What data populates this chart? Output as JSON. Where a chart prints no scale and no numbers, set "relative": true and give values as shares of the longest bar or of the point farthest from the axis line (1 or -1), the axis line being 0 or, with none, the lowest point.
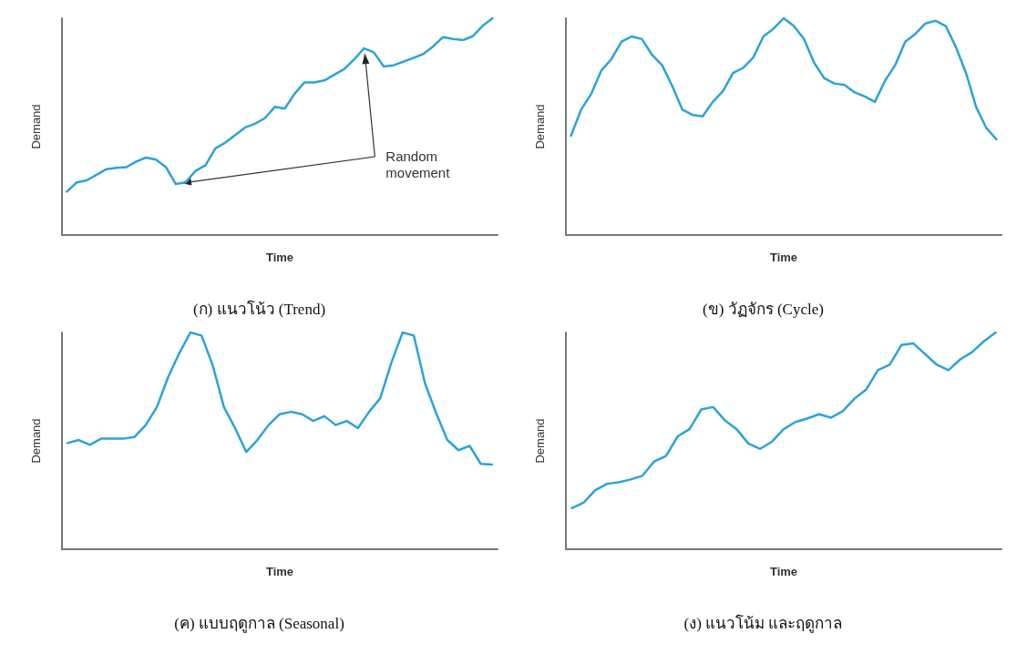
{
  "chart_data": [
    {
      "type": "line",
      "title": "(ก) แนวโน้ว (Trend)",
      "xlabel": "Time",
      "ylabel": "Demand",
      "relative": true,
      "grid": false,
      "marker": "none",
      "line_style": "solid",
      "annotations": [
        "Random movement"
      ],
      "categories": [
        null,
        null,
        null,
        null,
        null,
        null,
        null,
        null,
        null,
        null,
        null,
        null,
        null,
        null,
        null,
        null,
        null,
        null,
        null,
        null,
        null,
        null,
        null,
        null,
        null,
        null,
        null,
        null,
        null,
        null,
        null,
        null,
        null,
        null,
        null,
        null,
        null,
        null,
        null,
        null,
        null,
        null,
        null,
        null
      ],
      "series": [
        {
          "color": "#2aa3dc",
          "values": [
            0.2,
            0.243,
            0.252,
            0.278,
            0.304,
            0.31,
            0.313,
            0.339,
            0.357,
            0.348,
            0.313,
            0.235,
            0.243,
            0.296,
            0.322,
            0.4,
            0.426,
            0.461,
            0.496,
            0.513,
            0.539,
            0.591,
            0.583,
            0.652,
            0.704,
            0.704,
            0.713,
            0.739,
            0.765,
            0.809,
            0.861,
            0.843,
            0.777,
            0.783,
            0.8,
            0.817,
            0.835,
            0.87,
            0.913,
            0.904,
            0.899,
            0.917,
            0.965,
            1
          ]
        }
      ]
    },
    {
      "type": "line",
      "title": "(ข) วัฏจักร (Cycle)",
      "xlabel": "Time",
      "ylabel": "Demand",
      "relative": true,
      "grid": false,
      "marker": "none",
      "line_style": "solid",
      "categories": [
        null,
        null,
        null,
        null,
        null,
        null,
        null,
        null,
        null,
        null,
        null,
        null,
        null,
        null,
        null,
        null,
        null,
        null,
        null,
        null,
        null,
        null,
        null,
        null,
        null,
        null,
        null,
        null,
        null,
        null,
        null,
        null,
        null,
        null,
        null,
        null,
        null,
        null,
        null,
        null,
        null,
        null,
        null
      ],
      "series": [
        {
          "color": "#2aa3dc",
          "values": [
            0.458,
            0.578,
            0.651,
            0.759,
            0.812,
            0.892,
            0.916,
            0.904,
            0.831,
            0.783,
            0.687,
            0.578,
            0.554,
            0.547,
            0.614,
            0.663,
            0.747,
            0.771,
            0.819,
            0.916,
            0.952,
            1,
            0.964,
            0.904,
            0.795,
            0.723,
            0.699,
            0.692,
            0.658,
            0.639,
            0.614,
            0.711,
            0.783,
            0.892,
            0.928,
            0.976,
            0.988,
            0.964,
            0.867,
            0.747,
            0.59,
            0.494,
            0.441
          ]
        }
      ]
    },
    {
      "type": "line",
      "title": "(ค) แบบฤดูกาล (Seasonal)",
      "xlabel": "Time",
      "ylabel": "Demand",
      "relative": true,
      "grid": false,
      "marker": "none",
      "line_style": "solid",
      "categories": [
        null,
        null,
        null,
        null,
        null,
        null,
        null,
        null,
        null,
        null,
        null,
        null,
        null,
        null,
        null,
        null,
        null,
        null,
        null,
        null,
        null,
        null,
        null,
        null,
        null,
        null,
        null,
        null,
        null,
        null,
        null,
        null,
        null,
        null,
        null,
        null,
        null,
        null,
        null
      ],
      "series": [
        {
          "color": "#2aa3dc",
          "values": [
            0.49,
            0.504,
            0.482,
            0.51,
            0.51,
            0.51,
            0.518,
            0.573,
            0.656,
            0.793,
            0.904,
            1,
            0.986,
            0.848,
            0.656,
            0.559,
            0.449,
            0.504,
            0.573,
            0.623,
            0.634,
            0.623,
            0.592,
            0.614,
            0.573,
            0.592,
            0.559,
            0.634,
            0.697,
            0.862,
            1,
            0.986,
            0.766,
            0.628,
            0.504,
            0.457,
            0.477,
            0.394,
            0.391
          ]
        }
      ]
    },
    {
      "type": "line",
      "title": "(ง) แนวโน้ม และฤดูกาล",
      "xlabel": "Time",
      "ylabel": "Demand",
      "relative": true,
      "grid": false,
      "marker": "none",
      "line_style": "solid",
      "categories": [
        null,
        null,
        null,
        null,
        null,
        null,
        null,
        null,
        null,
        null,
        null,
        null,
        null,
        null,
        null,
        null,
        null,
        null,
        null,
        null,
        null,
        null,
        null,
        null,
        null,
        null,
        null,
        null,
        null,
        null,
        null,
        null,
        null,
        null,
        null,
        null,
        null
      ],
      "series": [
        {
          "color": "#2aa3dc",
          "values": [
            0.19,
            0.215,
            0.273,
            0.302,
            0.309,
            0.322,
            0.339,
            0.405,
            0.43,
            0.521,
            0.554,
            0.645,
            0.656,
            0.595,
            0.554,
            0.488,
            0.463,
            0.496,
            0.554,
            0.587,
            0.603,
            0.623,
            0.607,
            0.636,
            0.694,
            0.736,
            0.826,
            0.851,
            0.942,
            0.95,
            0.901,
            0.851,
            0.826,
            0.876,
            0.909,
            0.959,
            1
          ]
        }
      ]
    }
  ]
}
